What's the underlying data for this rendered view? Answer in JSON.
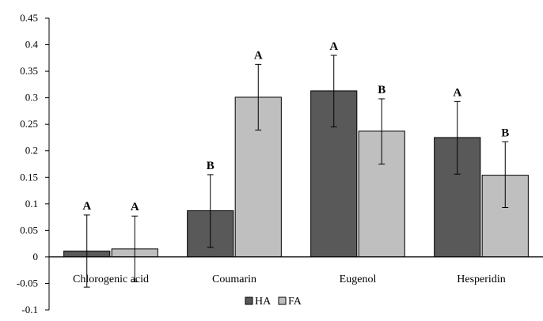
{
  "chart_data": {
    "type": "bar",
    "categories": [
      "Chlorogenic acid",
      "Coumarin",
      "Eugenol",
      "Hesperidin"
    ],
    "series": [
      {
        "name": "HA",
        "color": "#595959",
        "values": [
          0.011,
          0.087,
          0.313,
          0.225
        ],
        "error_upper": [
          0.079,
          0.155,
          0.38,
          0.293
        ],
        "error_lower": [
          -0.057,
          0.018,
          0.245,
          0.156
        ],
        "letters": [
          "A",
          "B",
          "A",
          "A"
        ]
      },
      {
        "name": "FA",
        "color": "#bfbfbf",
        "values": [
          0.015,
          0.301,
          0.237,
          0.154
        ],
        "error_upper": [
          0.077,
          0.363,
          0.298,
          0.217
        ],
        "error_lower": [
          -0.047,
          0.239,
          0.175,
          0.093
        ],
        "letters": [
          "A",
          "A",
          "B",
          "B"
        ]
      }
    ],
    "ylim": [
      -0.1,
      0.45
    ],
    "yticks": [
      "-0.1",
      "-0.05",
      "0",
      "0.05",
      "0.1",
      "0.15",
      "0.2",
      "0.25",
      "0.3",
      "0.35",
      "0.4",
      "0.45"
    ],
    "title": "",
    "xlabel": "",
    "ylabel": "",
    "legend_position": "bottom-center",
    "grid": false
  }
}
